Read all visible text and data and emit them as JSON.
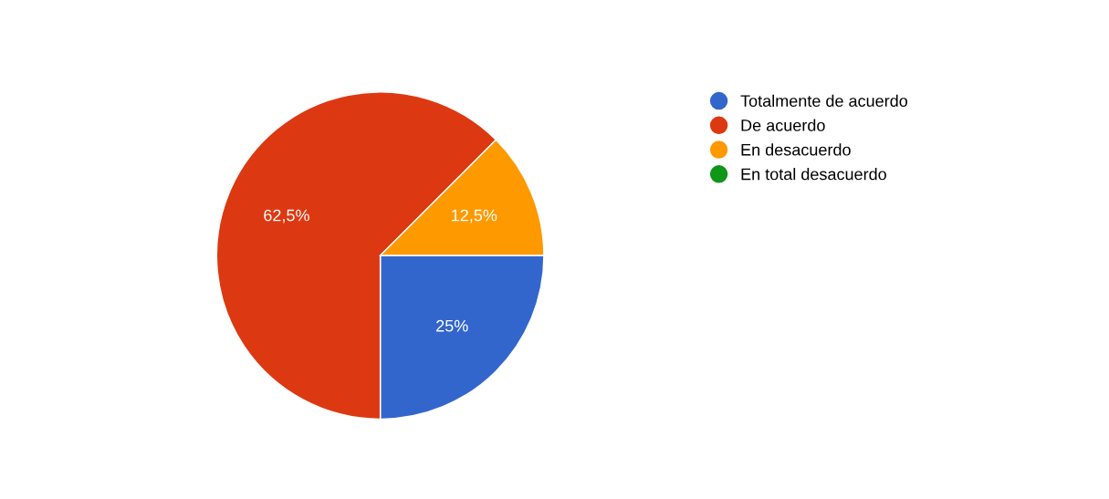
{
  "chart_data": {
    "type": "pie",
    "categories": [
      "Totalmente de acuerdo",
      "De acuerdo",
      "En desacuerdo",
      "En total desacuerdo"
    ],
    "values": [
      25,
      62.5,
      12.5,
      0
    ],
    "colors": [
      "#3366cc",
      "#dc3912",
      "#ff9900",
      "#109618"
    ],
    "value_labels": [
      "25%",
      "62,5%",
      "12,5%",
      null
    ],
    "legend": "right"
  }
}
